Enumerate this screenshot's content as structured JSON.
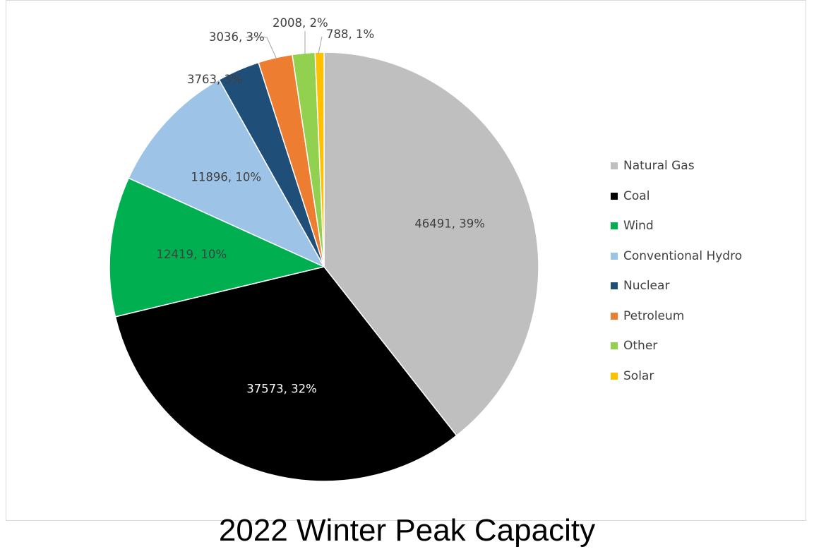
{
  "chart_data": {
    "type": "pie",
    "title": "2022 Winter Peak Capacity",
    "legend_position": "right",
    "slices": [
      {
        "name": "Natural Gas",
        "value": 46491,
        "percent": 39,
        "label": "46491, 39%",
        "color": "#bfbfbf",
        "label_color": "#404040"
      },
      {
        "name": "Coal",
        "value": 37573,
        "percent": 32,
        "label": "37573, 32%",
        "color": "#000000",
        "label_color": "#ffffff"
      },
      {
        "name": "Wind",
        "value": 12419,
        "percent": 10,
        "label": "12419, 10%",
        "color": "#00b050",
        "label_color": "#404040"
      },
      {
        "name": "Conventional Hydro",
        "value": 11896,
        "percent": 10,
        "label": "11896, 10%",
        "color": "#9dc3e6",
        "label_color": "#404040"
      },
      {
        "name": "Nuclear",
        "value": 3763,
        "percent": 3,
        "label": "3763, 3%",
        "color": "#1f4e79",
        "label_color": "#404040"
      },
      {
        "name": "Petroleum",
        "value": 3036,
        "percent": 3,
        "label": "3036, 3%",
        "color": "#ed7d31",
        "label_color": "#404040"
      },
      {
        "name": "Other",
        "value": 2008,
        "percent": 2,
        "label": "2008, 2%",
        "color": "#92d050",
        "label_color": "#404040"
      },
      {
        "name": "Solar",
        "value": 788,
        "percent": 1,
        "label": "788, 1%",
        "color": "#ffc000",
        "label_color": "#404040"
      }
    ]
  }
}
